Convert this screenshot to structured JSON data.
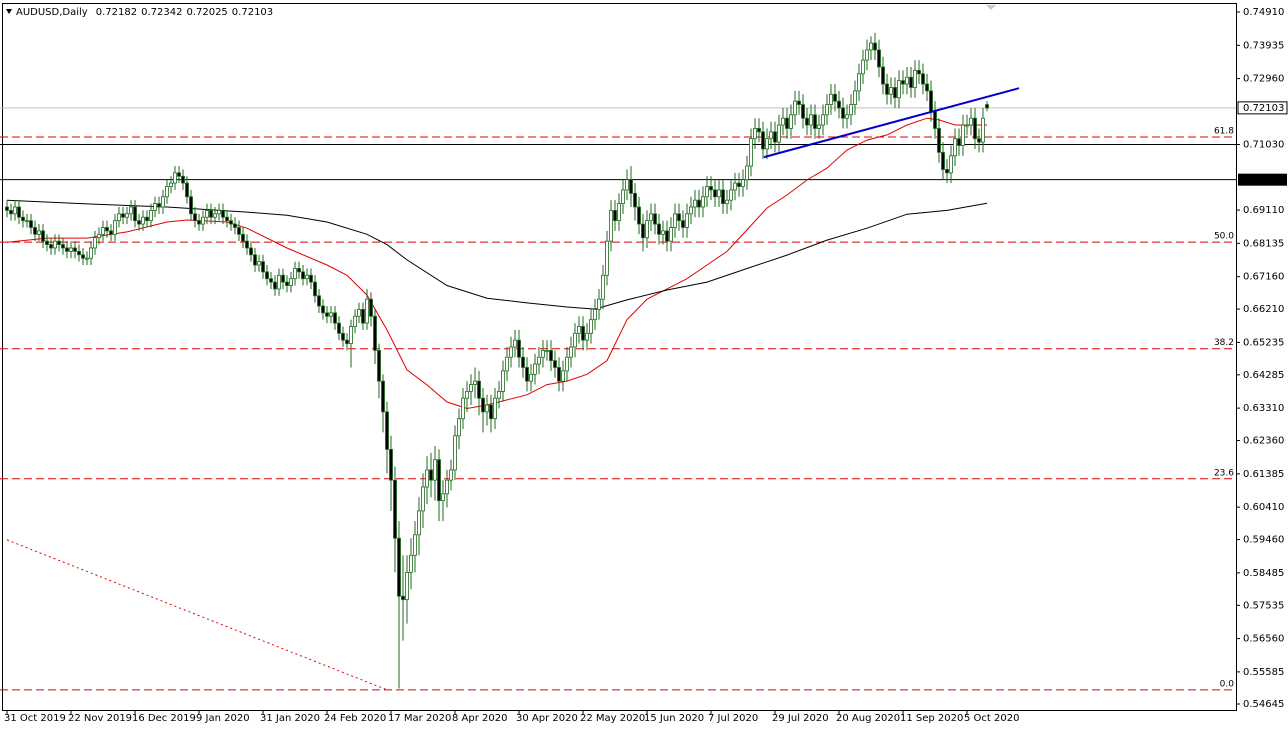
{
  "chart_data": {
    "type": "candlestick",
    "header": {
      "symbol": "AUDUSD,Daily",
      "quote": [
        0.72182,
        0.72342,
        0.72025,
        0.72103
      ]
    },
    "xlim": [
      -1.75,
      307.25
    ],
    "ylim": [
      0.54469,
      0.75174
    ],
    "yticks": [
      {
        "value": 0.7491,
        "label": "0.74910"
      },
      {
        "value": 0.73935,
        "label": "0.73935"
      },
      {
        "value": 0.7296,
        "label": "0.72960"
      },
      {
        "value": 0.7103,
        "label": "0.71030"
      },
      {
        "value": 0.6911,
        "label": "0.69110"
      },
      {
        "value": 0.68135,
        "label": "0.68135"
      },
      {
        "value": 0.6716,
        "label": "0.67160"
      },
      {
        "value": 0.6621,
        "label": "0.66210"
      },
      {
        "value": 0.65235,
        "label": "0.65235"
      },
      {
        "value": 0.64285,
        "label": "0.64285"
      },
      {
        "value": 0.6331,
        "label": "0.63310"
      },
      {
        "value": 0.6236,
        "label": "0.62360"
      },
      {
        "value": 0.61385,
        "label": "0.61385"
      },
      {
        "value": 0.6041,
        "label": "0.60410"
      },
      {
        "value": 0.5946,
        "label": "0.59460"
      },
      {
        "value": 0.58485,
        "label": "0.58485"
      },
      {
        "value": 0.57535,
        "label": "0.57535"
      },
      {
        "value": 0.5656,
        "label": "0.56560"
      },
      {
        "value": 0.55585,
        "label": "0.55585"
      },
      {
        "value": 0.54645,
        "label": "0.54645"
      }
    ],
    "xticks": [
      {
        "value": 0,
        "label": "31 Oct 2019"
      },
      {
        "value": 16,
        "label": "22 Nov 2019"
      },
      {
        "value": 32,
        "label": "16 Dec 2019"
      },
      {
        "value": 48,
        "label": "9 Jan 2020"
      },
      {
        "value": 64,
        "label": "31 Jan 2020"
      },
      {
        "value": 80,
        "label": "24 Feb 2020"
      },
      {
        "value": 96,
        "label": "17 Mar 2020"
      },
      {
        "value": 112,
        "label": "8 Apr 2020"
      },
      {
        "value": 128,
        "label": "30 Apr 2020"
      },
      {
        "value": 144,
        "label": "22 May 2020"
      },
      {
        "value": 160,
        "label": "15 Jun 2020"
      },
      {
        "value": 176,
        "label": "7 Jul 2020"
      },
      {
        "value": 192,
        "label": "29 Jul 2020"
      },
      {
        "value": 208,
        "label": "20 Aug 2020"
      },
      {
        "value": 224,
        "label": "11 Sep 2020"
      },
      {
        "value": 240,
        "label": "5 Oct 2020"
      }
    ],
    "up_color": "#ffffff",
    "down_color": "#000000",
    "wick_color": "#1f6a1f",
    "open": [
      0.692,
      0.691,
      0.69,
      0.692,
      0.689,
      0.688,
      0.688,
      0.686,
      0.684,
      0.685,
      0.682,
      0.681,
      0.68,
      0.682,
      0.681,
      0.68,
      0.679,
      0.68,
      0.679,
      0.678,
      0.677,
      0.677,
      0.68,
      0.683,
      0.684,
      0.686,
      0.685,
      0.684,
      0.688,
      0.69,
      0.689,
      0.69,
      0.692,
      0.688,
      0.687,
      0.689,
      0.688,
      0.691,
      0.693,
      0.692,
      0.695,
      0.698,
      0.699,
      0.702,
      0.701,
      0.699,
      0.695,
      0.69,
      0.688,
      0.687,
      0.689,
      0.691,
      0.689,
      0.69,
      0.691,
      0.689,
      0.688,
      0.687,
      0.686,
      0.684,
      0.682,
      0.68,
      0.678,
      0.675,
      0.676,
      0.673,
      0.671,
      0.67,
      0.668,
      0.672,
      0.67,
      0.669,
      0.671,
      0.674,
      0.673,
      0.671,
      0.672,
      0.67,
      0.666,
      0.663,
      0.661,
      0.66,
      0.661,
      0.658,
      0.655,
      0.653,
      0.652,
      0.657,
      0.66,
      0.662,
      0.658,
      0.665,
      0.66,
      0.65,
      0.641,
      0.632,
      0.621,
      0.612,
      0.595,
      0.578,
      0.577,
      0.585,
      0.59,
      0.596,
      0.603,
      0.61,
      0.615,
      0.612,
      0.618,
      0.606,
      0.608,
      0.612,
      0.615,
      0.625,
      0.63,
      0.636,
      0.638,
      0.64,
      0.641,
      0.636,
      0.632,
      0.634,
      0.63,
      0.636,
      0.638,
      0.644,
      0.648,
      0.651,
      0.653,
      0.648,
      0.645,
      0.641,
      0.643,
      0.646,
      0.648,
      0.65,
      0.65,
      0.647,
      0.645,
      0.641,
      0.644,
      0.648,
      0.651,
      0.655,
      0.657,
      0.653,
      0.655,
      0.659,
      0.662,
      0.665,
      0.672,
      0.682,
      0.691,
      0.688,
      0.693,
      0.697,
      0.7,
      0.696,
      0.692,
      0.687,
      0.683,
      0.688,
      0.69,
      0.687,
      0.684,
      0.685,
      0.682,
      0.686,
      0.69,
      0.688,
      0.686,
      0.69,
      0.692,
      0.694,
      0.692,
      0.695,
      0.698,
      0.697,
      0.695,
      0.697,
      0.693,
      0.694,
      0.697,
      0.699,
      0.698,
      0.7,
      0.704,
      0.712,
      0.715,
      0.714,
      0.709,
      0.712,
      0.714,
      0.711,
      0.716,
      0.718,
      0.715,
      0.719,
      0.723,
      0.722,
      0.718,
      0.716,
      0.719,
      0.715,
      0.716,
      0.719,
      0.722,
      0.725,
      0.723,
      0.721,
      0.718,
      0.719,
      0.722,
      0.726,
      0.731,
      0.735,
      0.738,
      0.74,
      0.738,
      0.733,
      0.728,
      0.725,
      0.727,
      0.724,
      0.729,
      0.728,
      0.73,
      0.727,
      0.732,
      0.731,
      0.728,
      0.726,
      0.72,
      0.715,
      0.708,
      0.703,
      0.702,
      0.707,
      0.712,
      0.71,
      0.716,
      0.716,
      0.718,
      0.712,
      0.711,
      0.722
    ],
    "high": [
      0.694,
      0.693,
      0.694,
      0.694,
      0.691,
      0.69,
      0.69,
      0.688,
      0.687,
      0.687,
      0.684,
      0.683,
      0.684,
      0.684,
      0.683,
      0.682,
      0.682,
      0.682,
      0.681,
      0.68,
      0.679,
      0.682,
      0.685,
      0.686,
      0.688,
      0.688,
      0.687,
      0.69,
      0.692,
      0.692,
      0.692,
      0.694,
      0.694,
      0.69,
      0.691,
      0.691,
      0.693,
      0.695,
      0.695,
      0.697,
      0.7,
      0.701,
      0.704,
      0.704,
      0.703,
      0.701,
      0.697,
      0.692,
      0.69,
      0.691,
      0.693,
      0.693,
      0.692,
      0.693,
      0.693,
      0.691,
      0.69,
      0.689,
      0.688,
      0.686,
      0.684,
      0.682,
      0.68,
      0.678,
      0.678,
      0.675,
      0.673,
      0.672,
      0.674,
      0.674,
      0.672,
      0.673,
      0.676,
      0.676,
      0.675,
      0.674,
      0.674,
      0.672,
      0.668,
      0.665,
      0.663,
      0.663,
      0.663,
      0.66,
      0.657,
      0.655,
      0.659,
      0.662,
      0.664,
      0.664,
      0.668,
      0.667,
      0.662,
      0.652,
      0.643,
      0.635,
      0.625,
      0.616,
      0.6,
      0.59,
      0.59,
      0.595,
      0.6,
      0.607,
      0.614,
      0.619,
      0.62,
      0.622,
      0.621,
      0.612,
      0.615,
      0.618,
      0.628,
      0.633,
      0.639,
      0.641,
      0.643,
      0.645,
      0.644,
      0.639,
      0.637,
      0.637,
      0.639,
      0.641,
      0.647,
      0.651,
      0.654,
      0.656,
      0.656,
      0.651,
      0.648,
      0.646,
      0.649,
      0.651,
      0.653,
      0.653,
      0.653,
      0.65,
      0.648,
      0.647,
      0.651,
      0.654,
      0.658,
      0.66,
      0.66,
      0.658,
      0.662,
      0.665,
      0.668,
      0.675,
      0.685,
      0.694,
      0.694,
      0.696,
      0.7,
      0.703,
      0.704,
      0.699,
      0.695,
      0.69,
      0.691,
      0.693,
      0.693,
      0.69,
      0.688,
      0.688,
      0.689,
      0.693,
      0.693,
      0.691,
      0.693,
      0.695,
      0.697,
      0.697,
      0.698,
      0.701,
      0.701,
      0.7,
      0.7,
      0.7,
      0.697,
      0.7,
      0.702,
      0.702,
      0.703,
      0.707,
      0.715,
      0.718,
      0.718,
      0.717,
      0.715,
      0.717,
      0.717,
      0.719,
      0.721,
      0.721,
      0.722,
      0.726,
      0.726,
      0.725,
      0.721,
      0.722,
      0.722,
      0.719,
      0.722,
      0.725,
      0.728,
      0.728,
      0.726,
      0.724,
      0.722,
      0.725,
      0.729,
      0.734,
      0.738,
      0.741,
      0.742,
      0.743,
      0.741,
      0.736,
      0.731,
      0.73,
      0.73,
      0.732,
      0.732,
      0.733,
      0.733,
      0.735,
      0.735,
      0.734,
      0.731,
      0.729,
      0.723,
      0.718,
      0.711,
      0.706,
      0.71,
      0.715,
      0.715,
      0.719,
      0.719,
      0.721,
      0.721,
      0.715,
      0.721,
      0.723
    ],
    "low": [
      0.689,
      0.688,
      0.688,
      0.687,
      0.686,
      0.686,
      0.684,
      0.682,
      0.682,
      0.68,
      0.679,
      0.678,
      0.678,
      0.679,
      0.678,
      0.677,
      0.677,
      0.677,
      0.676,
      0.675,
      0.675,
      0.675,
      0.678,
      0.681,
      0.682,
      0.683,
      0.682,
      0.682,
      0.686,
      0.687,
      0.687,
      0.688,
      0.686,
      0.685,
      0.685,
      0.686,
      0.686,
      0.689,
      0.69,
      0.69,
      0.693,
      0.696,
      0.697,
      0.699,
      0.697,
      0.693,
      0.688,
      0.686,
      0.685,
      0.685,
      0.687,
      0.687,
      0.687,
      0.688,
      0.687,
      0.686,
      0.685,
      0.684,
      0.682,
      0.68,
      0.678,
      0.676,
      0.673,
      0.673,
      0.671,
      0.669,
      0.668,
      0.666,
      0.666,
      0.668,
      0.667,
      0.667,
      0.669,
      0.671,
      0.669,
      0.669,
      0.668,
      0.664,
      0.661,
      0.659,
      0.658,
      0.658,
      0.656,
      0.653,
      0.651,
      0.65,
      0.645,
      0.655,
      0.658,
      0.656,
      0.656,
      0.657,
      0.646,
      0.636,
      0.626,
      0.614,
      0.603,
      0.585,
      0.551,
      0.565,
      0.57,
      0.58,
      0.585,
      0.59,
      0.598,
      0.605,
      0.607,
      0.606,
      0.6,
      0.6,
      0.604,
      0.609,
      0.612,
      0.621,
      0.627,
      0.632,
      0.634,
      0.636,
      0.631,
      0.626,
      0.628,
      0.626,
      0.627,
      0.633,
      0.635,
      0.641,
      0.645,
      0.648,
      0.645,
      0.642,
      0.638,
      0.638,
      0.64,
      0.643,
      0.645,
      0.647,
      0.644,
      0.642,
      0.638,
      0.638,
      0.641,
      0.645,
      0.648,
      0.652,
      0.65,
      0.65,
      0.652,
      0.656,
      0.659,
      0.662,
      0.669,
      0.679,
      0.685,
      0.685,
      0.69,
      0.694,
      0.692,
      0.688,
      0.684,
      0.679,
      0.68,
      0.685,
      0.684,
      0.681,
      0.681,
      0.679,
      0.679,
      0.683,
      0.685,
      0.683,
      0.683,
      0.687,
      0.689,
      0.689,
      0.689,
      0.692,
      0.694,
      0.692,
      0.692,
      0.69,
      0.69,
      0.691,
      0.694,
      0.695,
      0.695,
      0.697,
      0.701,
      0.709,
      0.711,
      0.706,
      0.706,
      0.709,
      0.708,
      0.708,
      0.713,
      0.712,
      0.712,
      0.716,
      0.719,
      0.715,
      0.713,
      0.713,
      0.712,
      0.712,
      0.713,
      0.716,
      0.719,
      0.72,
      0.718,
      0.715,
      0.715,
      0.716,
      0.719,
      0.723,
      0.728,
      0.732,
      0.735,
      0.735,
      0.73,
      0.725,
      0.722,
      0.722,
      0.721,
      0.721,
      0.725,
      0.725,
      0.724,
      0.724,
      0.728,
      0.725,
      0.723,
      0.717,
      0.712,
      0.705,
      0.7,
      0.699,
      0.699,
      0.704,
      0.707,
      0.707,
      0.713,
      0.713,
      0.709,
      0.708,
      0.708,
      0.72
    ],
    "close": [
      0.691,
      0.69,
      0.692,
      0.689,
      0.688,
      0.688,
      0.686,
      0.684,
      0.685,
      0.682,
      0.681,
      0.68,
      0.682,
      0.681,
      0.68,
      0.679,
      0.68,
      0.679,
      0.678,
      0.677,
      0.677,
      0.68,
      0.683,
      0.684,
      0.686,
      0.685,
      0.684,
      0.688,
      0.69,
      0.689,
      0.69,
      0.692,
      0.688,
      0.687,
      0.689,
      0.688,
      0.691,
      0.693,
      0.692,
      0.695,
      0.698,
      0.699,
      0.702,
      0.701,
      0.699,
      0.695,
      0.69,
      0.688,
      0.687,
      0.689,
      0.691,
      0.689,
      0.69,
      0.691,
      0.689,
      0.688,
      0.687,
      0.686,
      0.684,
      0.682,
      0.68,
      0.678,
      0.675,
      0.676,
      0.673,
      0.671,
      0.67,
      0.668,
      0.672,
      0.67,
      0.669,
      0.671,
      0.674,
      0.673,
      0.671,
      0.672,
      0.67,
      0.666,
      0.663,
      0.661,
      0.66,
      0.661,
      0.658,
      0.655,
      0.653,
      0.652,
      0.657,
      0.66,
      0.662,
      0.658,
      0.665,
      0.66,
      0.65,
      0.641,
      0.632,
      0.621,
      0.612,
      0.595,
      0.578,
      0.577,
      0.585,
      0.59,
      0.596,
      0.603,
      0.61,
      0.615,
      0.612,
      0.618,
      0.606,
      0.608,
      0.612,
      0.615,
      0.625,
      0.63,
      0.636,
      0.638,
      0.64,
      0.641,
      0.636,
      0.632,
      0.634,
      0.63,
      0.636,
      0.638,
      0.644,
      0.648,
      0.651,
      0.653,
      0.648,
      0.645,
      0.641,
      0.643,
      0.646,
      0.648,
      0.65,
      0.65,
      0.647,
      0.645,
      0.641,
      0.644,
      0.648,
      0.651,
      0.655,
      0.657,
      0.653,
      0.655,
      0.659,
      0.662,
      0.665,
      0.672,
      0.682,
      0.691,
      0.688,
      0.693,
      0.697,
      0.7,
      0.696,
      0.692,
      0.687,
      0.683,
      0.688,
      0.69,
      0.687,
      0.684,
      0.685,
      0.682,
      0.686,
      0.69,
      0.688,
      0.686,
      0.69,
      0.692,
      0.694,
      0.692,
      0.695,
      0.698,
      0.697,
      0.695,
      0.697,
      0.693,
      0.694,
      0.697,
      0.699,
      0.698,
      0.7,
      0.704,
      0.712,
      0.715,
      0.714,
      0.709,
      0.712,
      0.714,
      0.711,
      0.716,
      0.718,
      0.715,
      0.719,
      0.723,
      0.722,
      0.718,
      0.716,
      0.719,
      0.715,
      0.716,
      0.719,
      0.722,
      0.725,
      0.723,
      0.721,
      0.718,
      0.719,
      0.722,
      0.726,
      0.731,
      0.735,
      0.738,
      0.74,
      0.738,
      0.733,
      0.728,
      0.725,
      0.727,
      0.724,
      0.729,
      0.728,
      0.73,
      0.727,
      0.732,
      0.731,
      0.728,
      0.726,
      0.72,
      0.715,
      0.708,
      0.703,
      0.702,
      0.707,
      0.712,
      0.71,
      0.716,
      0.716,
      0.718,
      0.712,
      0.711,
      0.718,
      0.721
    ],
    "series": [
      {
        "color": "#e00000",
        "x": [
          0,
          10,
          20,
          30,
          40,
          45,
          55,
          60,
          70,
          80,
          85,
          90,
          95,
          100,
          105,
          110,
          115,
          120,
          125,
          130,
          135,
          140,
          145,
          150,
          155,
          160,
          165,
          170,
          175,
          180,
          185,
          190,
          195,
          200,
          205,
          210,
          215,
          220,
          225,
          230,
          233,
          237,
          240,
          245
        ],
        "values": [
          0.6817,
          0.6829,
          0.6829,
          0.6847,
          0.6876,
          0.6882,
          0.6876,
          0.6858,
          0.68,
          0.675,
          0.672,
          0.6662,
          0.656,
          0.6443,
          0.6399,
          0.6349,
          0.633,
          0.634,
          0.6355,
          0.637,
          0.64,
          0.641,
          0.643,
          0.647,
          0.659,
          0.665,
          0.668,
          0.671,
          0.675,
          0.679,
          0.6853,
          0.6917,
          0.6955,
          0.6999,
          0.7034,
          0.7087,
          0.7116,
          0.7131,
          0.716,
          0.718,
          0.7175,
          0.716,
          0.716,
          0.716
        ]
      },
      {
        "color": "#000000",
        "x": [
          0,
          20,
          40,
          60,
          70,
          80,
          90,
          95,
          100,
          110,
          120,
          130,
          140,
          147,
          155,
          165,
          175,
          185,
          195,
          205,
          215,
          225,
          235,
          245
        ],
        "values": [
          0.694,
          0.6929,
          0.692,
          0.6905,
          0.6896,
          0.6876,
          0.684,
          0.681,
          0.6765,
          0.669,
          0.6653,
          0.6639,
          0.6627,
          0.6621,
          0.6648,
          0.6677,
          0.67,
          0.674,
          0.6779,
          0.6823,
          0.6858,
          0.6899,
          0.691,
          0.6931
        ]
      }
    ],
    "lines": [
      {
        "color": "#0000cc",
        "dashed": false,
        "x": [
          189.25,
          253
        ],
        "y": [
          0.7066,
          0.7268
        ]
      },
      {
        "color": "#e00000",
        "dashed": true,
        "x": [
          0,
          95
        ],
        "y": [
          0.5945,
          0.5506
        ]
      }
    ],
    "levels": [
      {
        "price": 0.7,
        "label": "0.70000",
        "color": "#000000"
      },
      {
        "price": 0.7103,
        "color": "#000000"
      }
    ],
    "price_line": {
      "price": 0.72103,
      "color": "#c0c0c0"
    },
    "fibonacci": [
      {
        "label": "61.8",
        "price": 0.7125
      },
      {
        "label": "50.0",
        "price": 0.6817
      },
      {
        "label": "38.2",
        "price": 0.6505
      },
      {
        "label": "23.6",
        "price": 0.6124
      },
      {
        "label": "0.0",
        "price": 0.5506
      }
    ],
    "fib_color": "#e00000"
  }
}
